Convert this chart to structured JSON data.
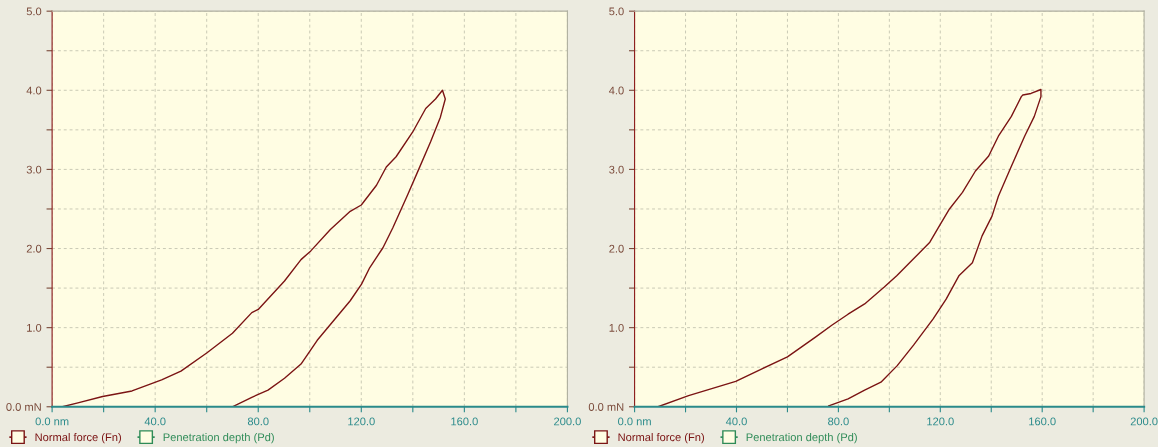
{
  "chart_data": [
    {
      "type": "line",
      "xlim": [
        0,
        200
      ],
      "ylim": [
        0,
        5
      ],
      "xticks": [
        {
          "value": 0,
          "label": "0.0 nm"
        },
        {
          "value": 20,
          "label": null
        },
        {
          "value": 40,
          "label": "40.0"
        },
        {
          "value": 60,
          "label": null
        },
        {
          "value": 80,
          "label": "80.0"
        },
        {
          "value": 100,
          "label": null
        },
        {
          "value": 120,
          "label": "120.0"
        },
        {
          "value": 140,
          "label": null
        },
        {
          "value": 160,
          "label": "160.0"
        },
        {
          "value": 180,
          "label": null
        },
        {
          "value": 200,
          "label": "200.0"
        }
      ],
      "yticks": [
        {
          "value": 0,
          "label": "0.0 mN"
        },
        {
          "value": 0.5,
          "label": null
        },
        {
          "value": 1,
          "label": "1.0"
        },
        {
          "value": 1.5,
          "label": null
        },
        {
          "value": 2,
          "label": "2.0"
        },
        {
          "value": 2.5,
          "label": null
        },
        {
          "value": 3,
          "label": "3.0"
        },
        {
          "value": 3.5,
          "label": null
        },
        {
          "value": 4,
          "label": "4.0"
        },
        {
          "value": 4.5,
          "label": null
        },
        {
          "value": 5,
          "label": "5.0"
        }
      ],
      "grid": true,
      "legend": "bottom left",
      "series": [
        {
          "name": "Normal force (Fn)",
          "color": "#7b1414",
          "x": [
            4,
            10,
            19.6,
            31,
            42.5,
            50,
            60,
            70,
            77.5,
            80,
            90.2,
            96.6,
            100.4,
            108,
            115.7,
            120,
            125.9,
            129.7,
            133.5,
            139.9,
            145,
            148.8,
            151.5,
            152.6,
            150.7,
            146.9,
            142.4,
            138,
            132.2,
            128.4,
            123.3,
            120.1,
            115.7,
            109.3,
            102.9,
            96.6,
            90.2,
            83.8,
            77.5,
            70
          ],
          "values": [
            0,
            0.05,
            0.13,
            0.2,
            0.34,
            0.45,
            0.68,
            0.93,
            1.19,
            1.23,
            1.59,
            1.86,
            1.97,
            2.24,
            2.47,
            2.55,
            2.8,
            3.03,
            3.16,
            3.47,
            3.77,
            3.89,
            4.0,
            3.89,
            3.66,
            3.35,
            3.01,
            2.68,
            2.26,
            2.01,
            1.76,
            1.55,
            1.34,
            1.09,
            0.84,
            0.54,
            0.36,
            0.21,
            0.12,
            0
          ]
        },
        {
          "name": "Penetration depth (Pd)",
          "color": "#2e8b57"
        }
      ]
    },
    {
      "type": "line",
      "xlim": [
        0,
        200
      ],
      "ylim": [
        0,
        5
      ],
      "xticks": [
        {
          "value": 0,
          "label": "0.0 nm"
        },
        {
          "value": 20,
          "label": null
        },
        {
          "value": 40,
          "label": "40.0"
        },
        {
          "value": 60,
          "label": null
        },
        {
          "value": 80,
          "label": "80.0"
        },
        {
          "value": 100,
          "label": null
        },
        {
          "value": 120,
          "label": "120.0"
        },
        {
          "value": 140,
          "label": null
        },
        {
          "value": 160,
          "label": "160.0"
        },
        {
          "value": 180,
          "label": null
        },
        {
          "value": 200,
          "label": "200.0"
        }
      ],
      "yticks": [
        {
          "value": 0,
          "label": "0.0 mN"
        },
        {
          "value": 0.5,
          "label": null
        },
        {
          "value": 1,
          "label": "1.0"
        },
        {
          "value": 1.5,
          "label": null
        },
        {
          "value": 2,
          "label": "2.0"
        },
        {
          "value": 2.5,
          "label": null
        },
        {
          "value": 3,
          "label": "3.0"
        },
        {
          "value": 3.5,
          "label": null
        },
        {
          "value": 4,
          "label": "4.0"
        },
        {
          "value": 4.5,
          "label": null
        },
        {
          "value": 5,
          "label": "5.0"
        }
      ],
      "grid": true,
      "legend": "bottom left",
      "series": [
        {
          "name": "Normal force (Fn)",
          "color": "#7b1414",
          "x": [
            9.2,
            21.2,
            39.7,
            50,
            60,
            71,
            77.4,
            83.8,
            90.3,
            97.9,
            103,
            109.5,
            115.9,
            119.7,
            123.6,
            128.7,
            133.8,
            139,
            142.8,
            147.9,
            151.8,
            152.4,
            155.6,
            159.5,
            159.5,
            156.9,
            153.1,
            147.9,
            142.8,
            140.3,
            136.4,
            132.6,
            127.4,
            122.3,
            117.2,
            109.5,
            103.1,
            96.7,
            90.3,
            83.8,
            76.2
          ],
          "values": [
            0,
            0.14,
            0.32,
            0.48,
            0.63,
            0.88,
            1.03,
            1.17,
            1.3,
            1.51,
            1.66,
            1.87,
            2.08,
            2.29,
            2.5,
            2.71,
            2.98,
            3.17,
            3.42,
            3.67,
            3.92,
            3.94,
            3.96,
            4.01,
            3.92,
            3.67,
            3.42,
            3.04,
            2.66,
            2.41,
            2.16,
            1.82,
            1.66,
            1.36,
            1.11,
            0.78,
            0.52,
            0.31,
            0.21,
            0.1,
            0.01
          ]
        },
        {
          "name": "Penetration depth (Pd)",
          "color": "#2e8b57"
        }
      ]
    }
  ]
}
